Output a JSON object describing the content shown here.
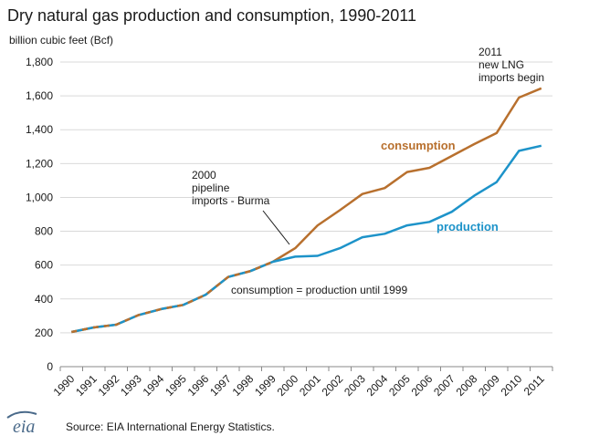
{
  "chart_data": {
    "type": "line",
    "title": "Dry natural gas production and consumption, 1990-2011",
    "ylabel": "billion cubic feet (Bcf)",
    "xlabel": "",
    "ylim": [
      0,
      1800
    ],
    "yticks": [
      "0",
      "200",
      "400",
      "600",
      "800",
      "1,000",
      "1,200",
      "1,400",
      "1,600",
      "1,800"
    ],
    "ytick_values": [
      0,
      200,
      400,
      600,
      800,
      1000,
      1200,
      1400,
      1600,
      1800
    ],
    "categories": [
      "1990",
      "1991",
      "1992",
      "1993",
      "1994",
      "1995",
      "1996",
      "1997",
      "1998",
      "1999",
      "2000",
      "2001",
      "2002",
      "2003",
      "2004",
      "2005",
      "2006",
      "2007",
      "2008",
      "2009",
      "2010",
      "2011"
    ],
    "grid": "horizontal",
    "legend": "direct labels on lines",
    "series": [
      {
        "name": "consumption",
        "color": "#b8702e",
        "values": [
          205,
          232,
          248,
          305,
          340,
          365,
          425,
          530,
          565,
          620,
          700,
          835,
          925,
          1020,
          1055,
          1150,
          1175,
          1245,
          1315,
          1380,
          1590,
          1645
        ]
      },
      {
        "name": "production",
        "color": "#1d93c9",
        "values": [
          205,
          232,
          248,
          305,
          340,
          365,
          425,
          530,
          565,
          620,
          650,
          655,
          700,
          765,
          785,
          835,
          855,
          915,
          1010,
          1090,
          1275,
          1305
        ]
      }
    ],
    "annotations": {
      "a2011": [
        "2011",
        "new LNG",
        "imports begin"
      ],
      "a2000": [
        "2000",
        "pipeline",
        "imports - Burma"
      ],
      "until1999": "consumption = production until 1999"
    }
  },
  "source": "Source: EIA International Energy Statistics.",
  "logo_text": "eia"
}
